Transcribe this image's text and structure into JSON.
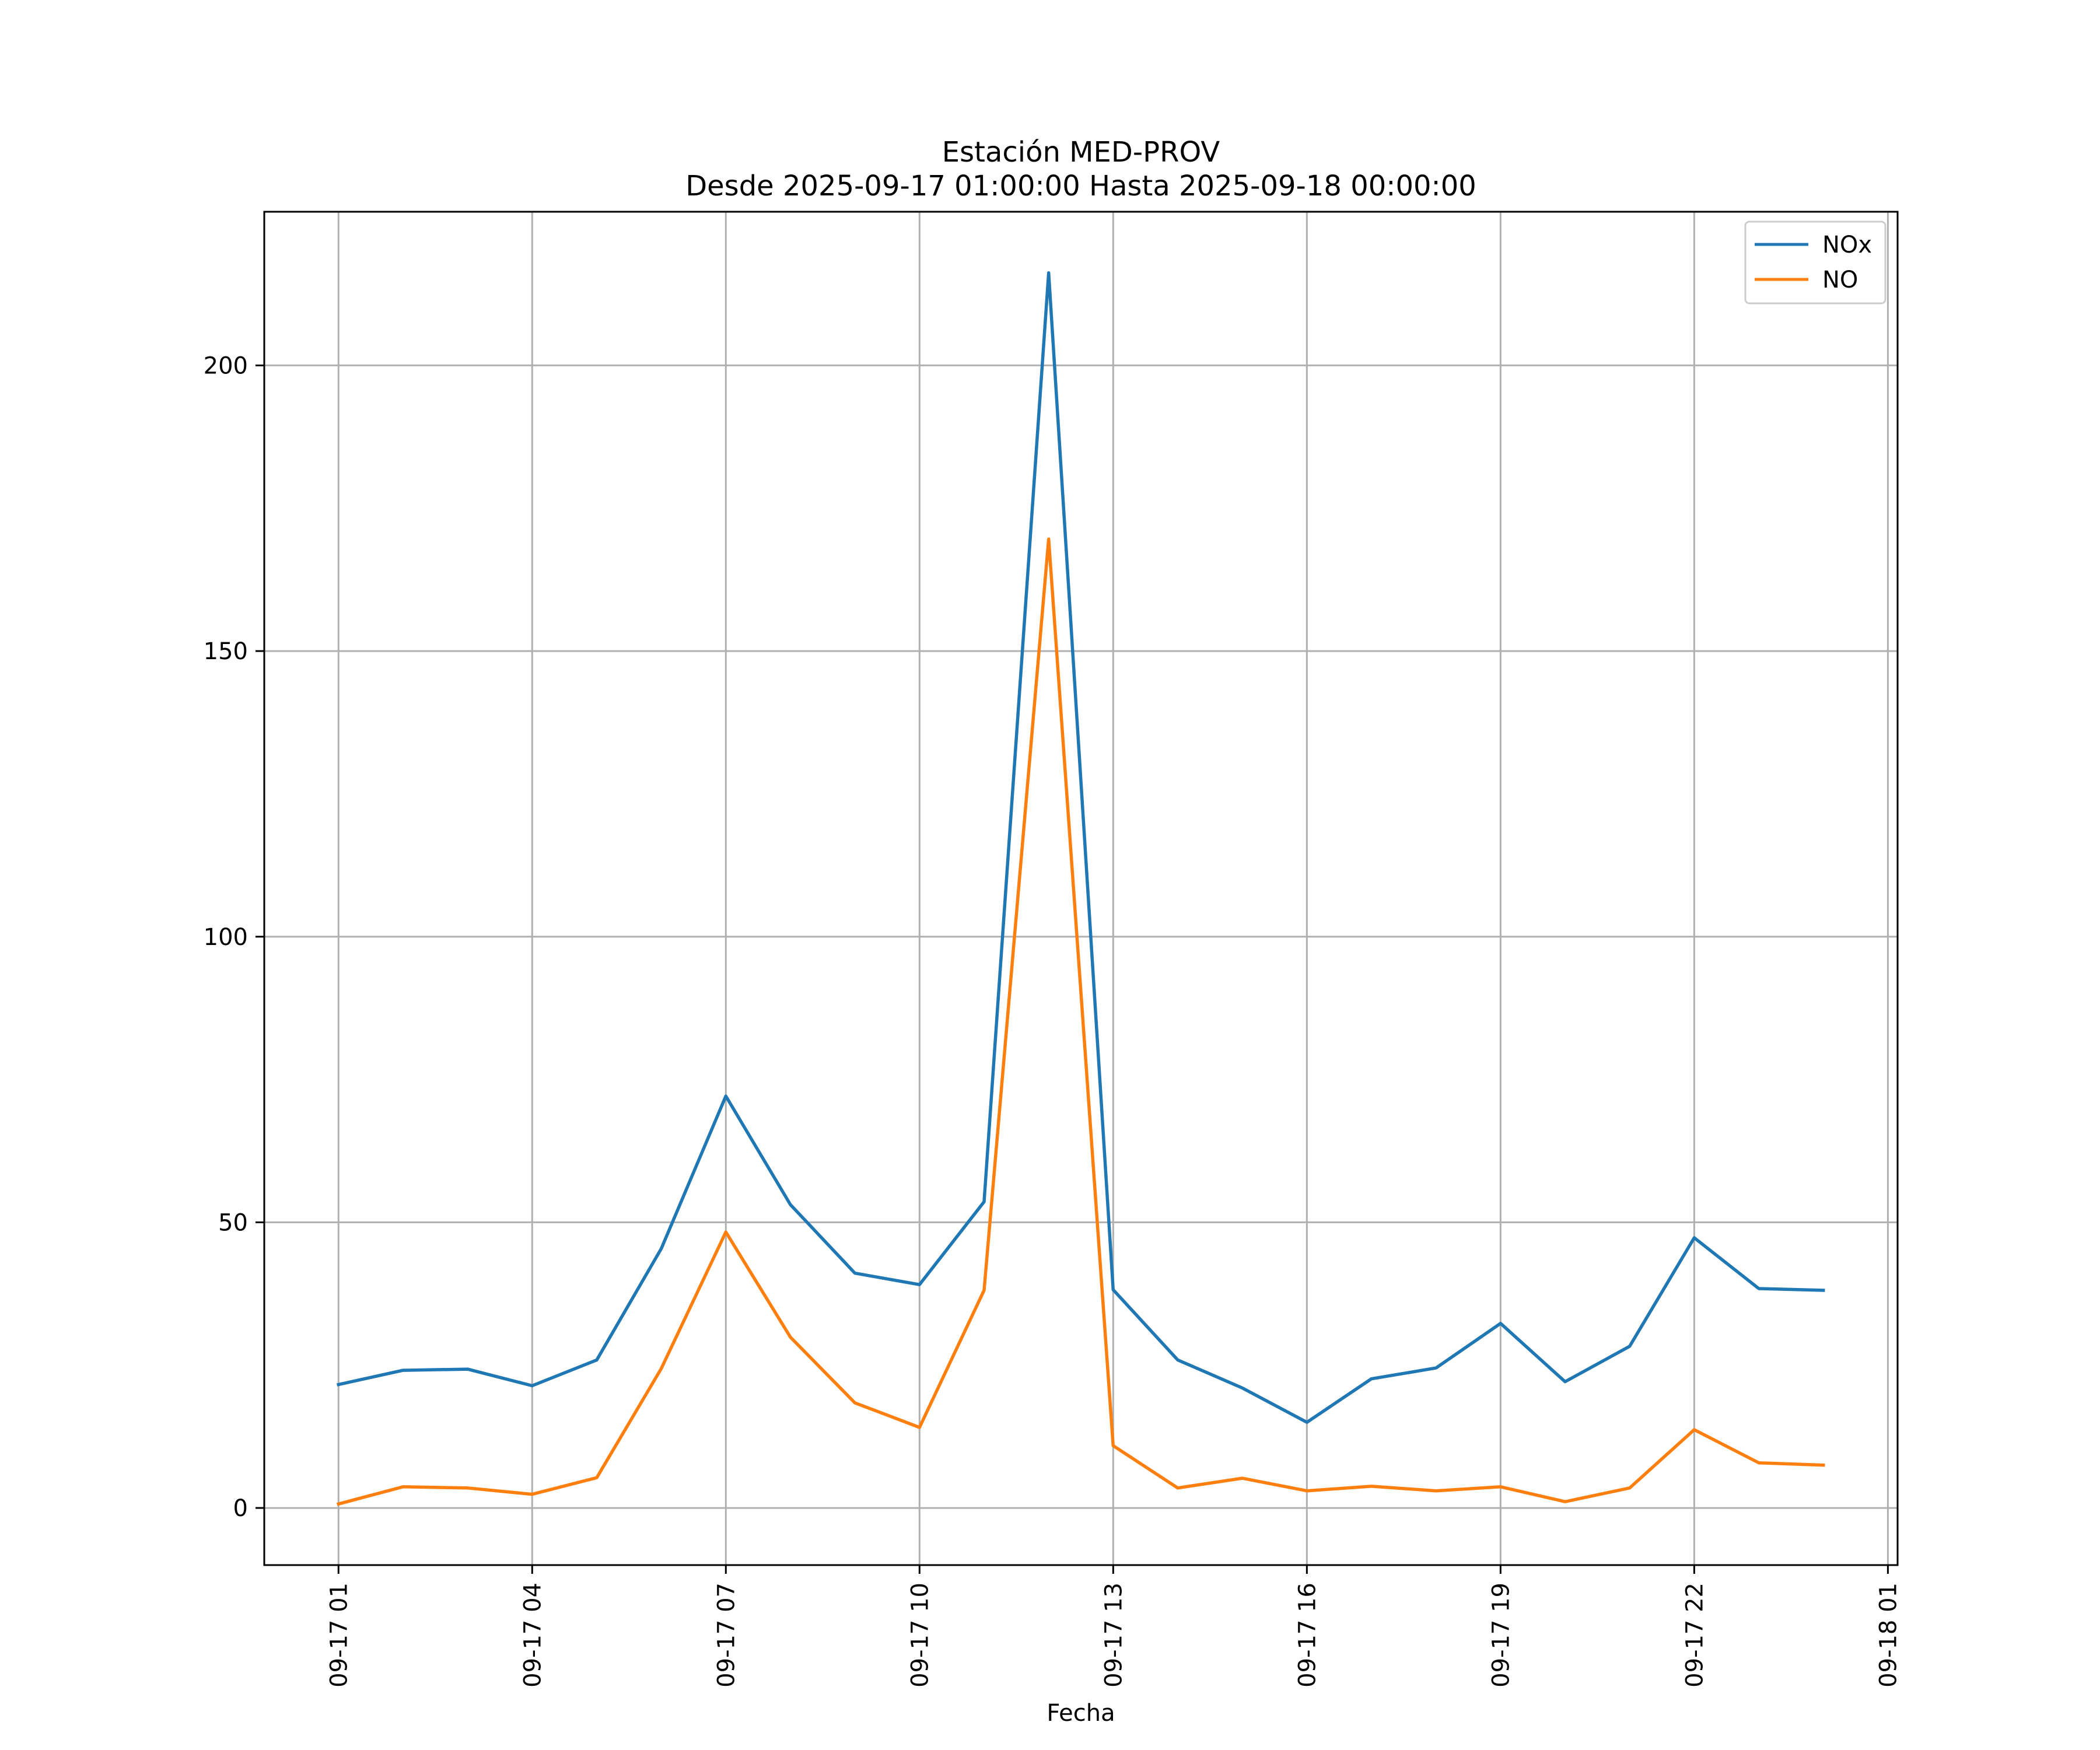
{
  "chart_data": {
    "type": "line",
    "title_line1": "Estación MED-PROV",
    "title_line2": "Desde 2025-09-17 01:00:00 Hasta 2025-09-18 00:00:00",
    "xlabel": "Fecha",
    "ylabel": "",
    "x_hours": [
      1,
      2,
      3,
      4,
      5,
      6,
      7,
      8,
      9,
      10,
      11,
      12,
      13,
      14,
      15,
      16,
      17,
      18,
      19,
      20,
      21,
      22,
      23,
      24
    ],
    "xlim_hours": [
      -0.15,
      25.15
    ],
    "x_ticks": [
      {
        "hour": 1,
        "label": "09-17 01"
      },
      {
        "hour": 4,
        "label": "09-17 04"
      },
      {
        "hour": 7,
        "label": "09-17 07"
      },
      {
        "hour": 10,
        "label": "09-17 10"
      },
      {
        "hour": 13,
        "label": "09-17 13"
      },
      {
        "hour": 16,
        "label": "09-17 16"
      },
      {
        "hour": 19,
        "label": "09-17 19"
      },
      {
        "hour": 22,
        "label": "09-17 22"
      },
      {
        "hour": 25,
        "label": "09-18 01"
      }
    ],
    "ylim": [
      -10,
      226.9
    ],
    "y_ticks": [
      {
        "value": 0,
        "label": "0"
      },
      {
        "value": 50,
        "label": "50"
      },
      {
        "value": 100,
        "label": "100"
      },
      {
        "value": 150,
        "label": "150"
      },
      {
        "value": 200,
        "label": "200"
      }
    ],
    "grid": true,
    "legend_position": "top-right",
    "series": [
      {
        "name": "NOx",
        "color": "#1f77b4",
        "values": [
          21.6,
          24.1,
          24.3,
          21.4,
          25.9,
          45.4,
          72.1,
          53.1,
          41.1,
          39.1,
          53.6,
          216.2,
          38.2,
          25.9,
          21.0,
          15.0,
          22.6,
          24.5,
          32.3,
          22.1,
          28.3,
          47.3,
          38.4,
          38.1
        ]
      },
      {
        "name": "NO",
        "color": "#ff7f0e",
        "values": [
          0.7,
          3.7,
          3.5,
          2.4,
          5.3,
          24.4,
          48.3,
          29.9,
          18.4,
          14.1,
          38.1,
          169.6,
          10.9,
          3.5,
          5.2,
          3.0,
          3.8,
          3.0,
          3.7,
          1.1,
          3.5,
          13.7,
          7.9,
          7.5
        ]
      }
    ]
  }
}
